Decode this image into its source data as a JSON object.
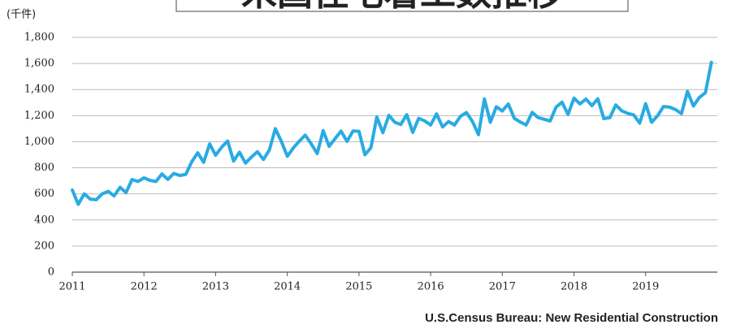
{
  "chart_data": {
    "type": "line",
    "title": "米国住宅着工数推移",
    "y_label": "(千件)",
    "source": "U.S.Census Bureau: New Residential Construction",
    "x": [
      2011,
      2011.083,
      2011.167,
      2011.25,
      2011.333,
      2011.417,
      2011.5,
      2011.583,
      2011.667,
      2011.75,
      2011.833,
      2011.917,
      2012,
      2012.083,
      2012.167,
      2012.25,
      2012.333,
      2012.417,
      2012.5,
      2012.583,
      2012.667,
      2012.75,
      2012.833,
      2012.917,
      2013,
      2013.083,
      2013.167,
      2013.25,
      2013.333,
      2013.417,
      2013.5,
      2013.583,
      2013.667,
      2013.75,
      2013.833,
      2013.917,
      2014,
      2014.083,
      2014.167,
      2014.25,
      2014.333,
      2014.417,
      2014.5,
      2014.583,
      2014.667,
      2014.75,
      2014.833,
      2014.917,
      2015,
      2015.083,
      2015.167,
      2015.25,
      2015.333,
      2015.417,
      2015.5,
      2015.583,
      2015.667,
      2015.75,
      2015.833,
      2015.917,
      2016,
      2016.083,
      2016.167,
      2016.25,
      2016.333,
      2016.417,
      2016.5,
      2016.583,
      2016.667,
      2016.75,
      2016.833,
      2016.917,
      2017,
      2017.083,
      2017.167,
      2017.25,
      2017.333,
      2017.417,
      2017.5,
      2017.583,
      2017.667,
      2017.75,
      2017.833,
      2017.917,
      2018,
      2018.083,
      2018.167,
      2018.25,
      2018.333,
      2018.417,
      2018.5,
      2018.583,
      2018.667,
      2018.75,
      2018.833,
      2018.917,
      2019,
      2019.083,
      2019.167,
      2019.25,
      2019.333,
      2019.417,
      2019.5,
      2019.583,
      2019.667,
      2019.75,
      2019.833,
      2019.917
    ],
    "series": [
      {
        "color": "#29abe2",
        "values": [
          630,
          520,
          600,
          560,
          555,
          600,
          620,
          585,
          650,
          610,
          710,
          695,
          723,
          704,
          695,
          753,
          711,
          757,
          741,
          750,
          847,
          915,
          842,
          983,
          896,
          957,
          1005,
          852,
          919,
          836,
          883,
          923,
          864,
          936,
          1100,
          1003,
          888,
          952,
          1004,
          1050,
          985,
          909,
          1085,
          965,
          1024,
          1081,
          1003,
          1082,
          1080,
          900,
          954,
          1190,
          1069,
          1202,
          1149,
          1132,
          1207,
          1071,
          1179,
          1160,
          1128,
          1213,
          1113,
          1155,
          1128,
          1195,
          1223,
          1156,
          1054,
          1328,
          1149,
          1268,
          1236,
          1289,
          1179,
          1151,
          1128,
          1225,
          1185,
          1172,
          1159,
          1265,
          1303,
          1209,
          1334,
          1290,
          1327,
          1276,
          1329,
          1177,
          1184,
          1282,
          1237,
          1217,
          1206,
          1142,
          1291,
          1149,
          1199,
          1270,
          1265,
          1246,
          1215,
          1386,
          1274,
          1340,
          1375,
          1608
        ]
      }
    ],
    "xlim": [
      2011,
      2020
    ],
    "xticks": [
      2011,
      2012,
      2013,
      2014,
      2015,
      2016,
      2017,
      2018,
      2019
    ],
    "ylim": [
      0,
      1800
    ],
    "yticks": [
      0,
      200,
      400,
      600,
      800,
      {
        "value": 1000,
        "label": "1,000"
      },
      {
        "value": 1200,
        "label": "1,200"
      },
      {
        "value": 1400,
        "label": "1,400"
      },
      {
        "value": 1600,
        "label": "1,600"
      },
      {
        "value": 1800,
        "label": "1,800"
      }
    ],
    "grid": true
  }
}
